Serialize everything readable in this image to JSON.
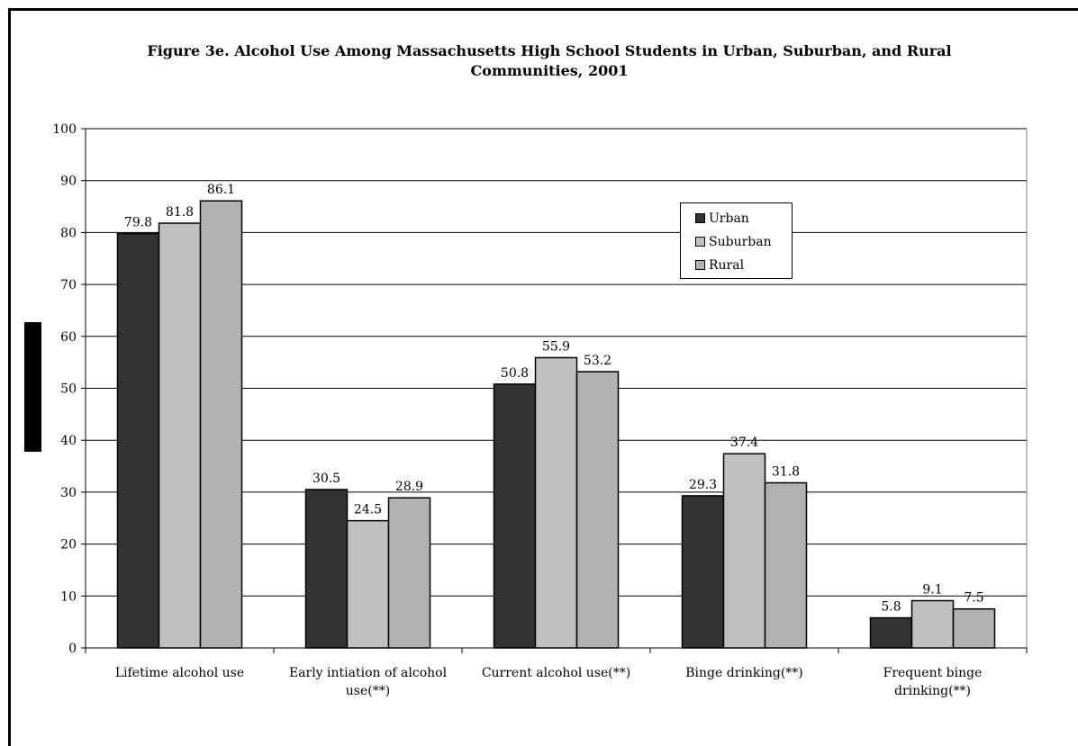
{
  "chart_data": {
    "type": "bar",
    "title": "Figure 3e. Alcohol Use Among Massachusetts High School Students in Urban, Suburban, and Rural Communities, 2001",
    "xlabel": "",
    "ylabel": "",
    "ylim": [
      0,
      100
    ],
    "yticks": [
      "0",
      "10",
      "20",
      "30",
      "40",
      "50",
      "60",
      "70",
      "80",
      "90",
      "100"
    ],
    "grid": true,
    "legend_position": "top-right",
    "categories": [
      [
        "Lifetime alcohol use"
      ],
      [
        "Early intiation of alcohol",
        "use(**)"
      ],
      [
        "Current alcohol use(**)"
      ],
      [
        "Binge drinking(**)"
      ],
      [
        "Frequent binge",
        "drinking(**)"
      ]
    ],
    "series": [
      {
        "name": "Urban",
        "color": "#333333",
        "values": [
          79.8,
          30.5,
          50.8,
          29.3,
          5.8
        ]
      },
      {
        "name": "Suburban",
        "color": "#c0c0c0",
        "values": [
          81.8,
          24.5,
          55.9,
          37.4,
          9.1
        ]
      },
      {
        "name": "Rural",
        "color": "#b2b2b2",
        "values": [
          86.1,
          28.9,
          53.2,
          31.8,
          7.5
        ]
      }
    ],
    "data_labels": [
      [
        "79.8",
        "30.5",
        "50.8",
        "29.3",
        "5.8"
      ],
      [
        "81.8",
        "24.5",
        "55.9",
        "37.4",
        "9.1"
      ],
      [
        "86.1",
        "28.9",
        "53.2",
        "31.8",
        "7.5"
      ]
    ]
  }
}
